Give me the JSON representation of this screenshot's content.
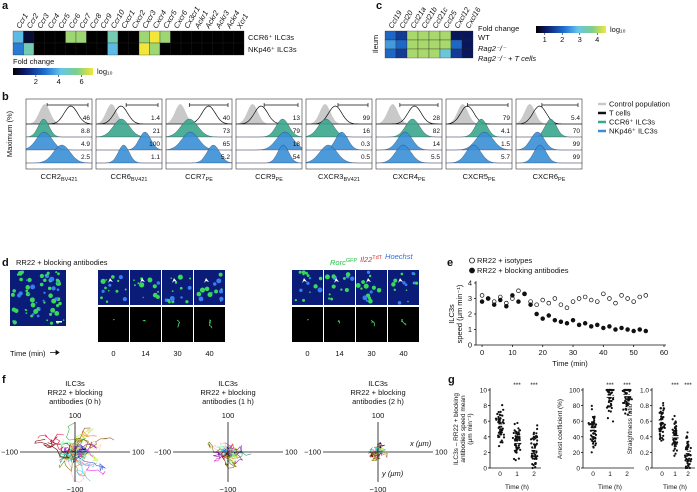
{
  "a": {
    "letter": "a",
    "genes": [
      "Ccr1",
      "Ccr2",
      "Ccr3",
      "Ccr4",
      "Ccr5",
      "Ccr6",
      "Ccr7",
      "Ccr8",
      "Ccr9",
      "Ccr10",
      "Cxcr1",
      "Cxcr2",
      "Cxcr3",
      "Cxcr4",
      "Cxcr5",
      "Cxcr6",
      "Cx3cr1",
      "Ackr1",
      "Ackr2",
      "Ackr3",
      "Ackr4",
      "Xcr1"
    ],
    "rows": [
      "CCR6⁺ ILC3s",
      "NKp46⁺ ILC3s"
    ],
    "values": [
      [
        4,
        0.5,
        0,
        0,
        0,
        6,
        6,
        0,
        0,
        5,
        0,
        0,
        6,
        7,
        6,
        0,
        0,
        0,
        0,
        0,
        0,
        0
      ],
      [
        3,
        5,
        0,
        0,
        0,
        0,
        0,
        0,
        0,
        4,
        0,
        0,
        7,
        6,
        0,
        0,
        0,
        0,
        0,
        0,
        0,
        0
      ]
    ],
    "scale": {
      "title": "Fold change",
      "unit": "log₁₀",
      "lim": [
        0,
        7
      ],
      "ticks": [
        2,
        4,
        6
      ]
    }
  },
  "b": {
    "letter": "b",
    "ylabel": "Maximum (%)",
    "legend": [
      "Control population",
      "T cells",
      "CCR6⁺ ILC3s",
      "NKp46⁺ ILC3s"
    ],
    "colors": [
      "#c9c9c9",
      "#111111",
      "#3aa68c",
      "#3a8fd6"
    ],
    "markers": [
      {
        "name": "CCR2",
        "sub": "BV421",
        "numbers": [
          46,
          8.8,
          4.9,
          2.5
        ]
      },
      {
        "name": "CCR6",
        "sub": "BV421",
        "numbers": [
          1.4,
          21,
          100,
          1.1
        ]
      },
      {
        "name": "CCR7",
        "sub": "PE",
        "numbers": [
          40,
          73,
          65,
          5.2
        ]
      },
      {
        "name": "CCR9",
        "sub": "PE",
        "numbers": [
          13,
          79,
          18,
          54
        ]
      },
      {
        "name": "CXCR3",
        "sub": "BV421",
        "numbers": [
          99,
          16,
          0.3,
          0.5
        ]
      },
      {
        "name": "CXCR4",
        "sub": "PE",
        "numbers": [
          28,
          82,
          14,
          5.5
        ]
      },
      {
        "name": "CXCR5",
        "sub": "PE",
        "numbers": [
          79,
          4.1,
          1.5,
          5.7
        ]
      },
      {
        "name": "CXCR6",
        "sub": "PE",
        "numbers": [
          5.4,
          70,
          99,
          99
        ]
      }
    ]
  },
  "c": {
    "letter": "c",
    "tissue": "Ileum",
    "genes": [
      "Ccl19",
      "Ccl20",
      "Ccl21a",
      "Ccl21b",
      "Ccl21c",
      "Ccl25",
      "Cxcl12",
      "Cxcl16"
    ],
    "rows": [
      "WT",
      "Rag2⁻/⁻",
      "Rag2⁻/⁻ + T cells"
    ],
    "values": [
      [
        2,
        1.5,
        4,
        4,
        4,
        4,
        1,
        1
      ],
      [
        2.5,
        2,
        4,
        4,
        4,
        4,
        2,
        1
      ],
      [
        2,
        1.5,
        4,
        4,
        4,
        3,
        1.5,
        1
      ]
    ],
    "scale": {
      "title": "Fold change",
      "unit": "log₁₀",
      "lim": [
        0.5,
        4.5
      ],
      "ticks": [
        1,
        2,
        3,
        4
      ]
    }
  },
  "d": {
    "letter": "d",
    "title": "RR22 + blocking antibodies",
    "channels": [
      {
        "name": "Rorc",
        "sup": "GFP",
        "color": "#22c043"
      },
      {
        "name": "Il22",
        "sup": "TdT",
        "color": "#e0302a"
      },
      {
        "name": "Hoechst",
        "sup": null,
        "color": "#2f6fe0"
      }
    ],
    "time_label": "Time (min)",
    "groups": [
      [
        0,
        14,
        30,
        40
      ],
      [
        0,
        14,
        30,
        40
      ]
    ]
  },
  "e": {
    "letter": "e",
    "ylabel": [
      "ILC3s",
      "speed (μm min⁻¹)"
    ],
    "xlabel": "Time (min)",
    "x": [
      0,
      2,
      4,
      6,
      8,
      10,
      12,
      14,
      16,
      18,
      20,
      22,
      24,
      26,
      28,
      30,
      32,
      34,
      36,
      38,
      40,
      42,
      44,
      46,
      48,
      50,
      52,
      54
    ],
    "series": [
      {
        "name": "RR22 + isotypes",
        "color": "#111111",
        "values": [
          3.2,
          3.0,
          2.8,
          3.1,
          2.7,
          3.0,
          3.5,
          3.3,
          2.8,
          2.6,
          2.9,
          2.7,
          3.0,
          2.6,
          2.4,
          2.8,
          3.0,
          3.1,
          2.9,
          2.8,
          3.3,
          3.0,
          2.7,
          3.2,
          3.0,
          2.8,
          3.1,
          3.2
        ]
      },
      {
        "name": "RR22 + blocking antibodies",
        "color": "#111111",
        "values": [
          2.8,
          3.0,
          2.6,
          2.9,
          2.5,
          3.2,
          2.8,
          3.3,
          2.6,
          2.0,
          1.7,
          1.9,
          1.6,
          1.5,
          1.4,
          1.6,
          1.3,
          1.4,
          1.2,
          1.3,
          1.1,
          1.2,
          1.0,
          1.1,
          1.0,
          0.9,
          1.0,
          0.9
        ]
      }
    ],
    "xlim": [
      -2,
      60
    ],
    "ylim": [
      0,
      4
    ],
    "xticks": [
      0,
      10,
      20,
      30,
      40,
      50,
      60
    ],
    "yticks": [
      0,
      1,
      2,
      3,
      4
    ]
  },
  "f": {
    "letter": "f",
    "plots": [
      {
        "title": [
          "ILC3s",
          "RR22 + blocking",
          "antibodies (0 h)"
        ]
      },
      {
        "title": [
          "ILC3s",
          "RR22 + blocking",
          "antibodies (1 h)"
        ]
      },
      {
        "title": [
          "ILC3s",
          "RR22 + blocking",
          "antibodies (2 h)"
        ]
      }
    ],
    "lim": [
      -100,
      100
    ],
    "ticks": [
      {
        "value": -100,
        "label": "−100"
      },
      100
    ],
    "x_label": "x (μm)",
    "y_label": "y (μm)"
  },
  "g": {
    "letter": "g",
    "xlabel": "Time (h)",
    "categories": [
      "0",
      "1",
      "2"
    ],
    "plots": [
      {
        "ylabel": [
          "ILC3s – RR22 + blocking",
          "antibodies speed mean",
          "(μm min⁻¹)"
        ],
        "ylim": [
          0,
          10
        ],
        "yticks": [
          0,
          2,
          4,
          6,
          8,
          10
        ],
        "means": [
          5.5,
          3.3,
          2.4
        ],
        "stars": [
          null,
          "***",
          "***"
        ]
      },
      {
        "ylabel": [
          "Arrest coefficient (%)"
        ],
        "ylim": [
          0,
          100
        ],
        "yticks": [
          0,
          20,
          40,
          60,
          80,
          100
        ],
        "means": [
          50,
          92,
          93
        ],
        "stars": [
          null,
          "***",
          "***"
        ]
      },
      {
        "ylabel": [
          "Straightness ratio"
        ],
        "ylim": [
          0,
          1
        ],
        "yticks": [
          0,
          0.2,
          0.4,
          0.6,
          0.8,
          {
            "value": 1,
            "label": "1.0"
          }
        ],
        "means": [
          0.6,
          0.4,
          0.2
        ],
        "stars": [
          null,
          "***",
          "***"
        ]
      }
    ]
  }
}
